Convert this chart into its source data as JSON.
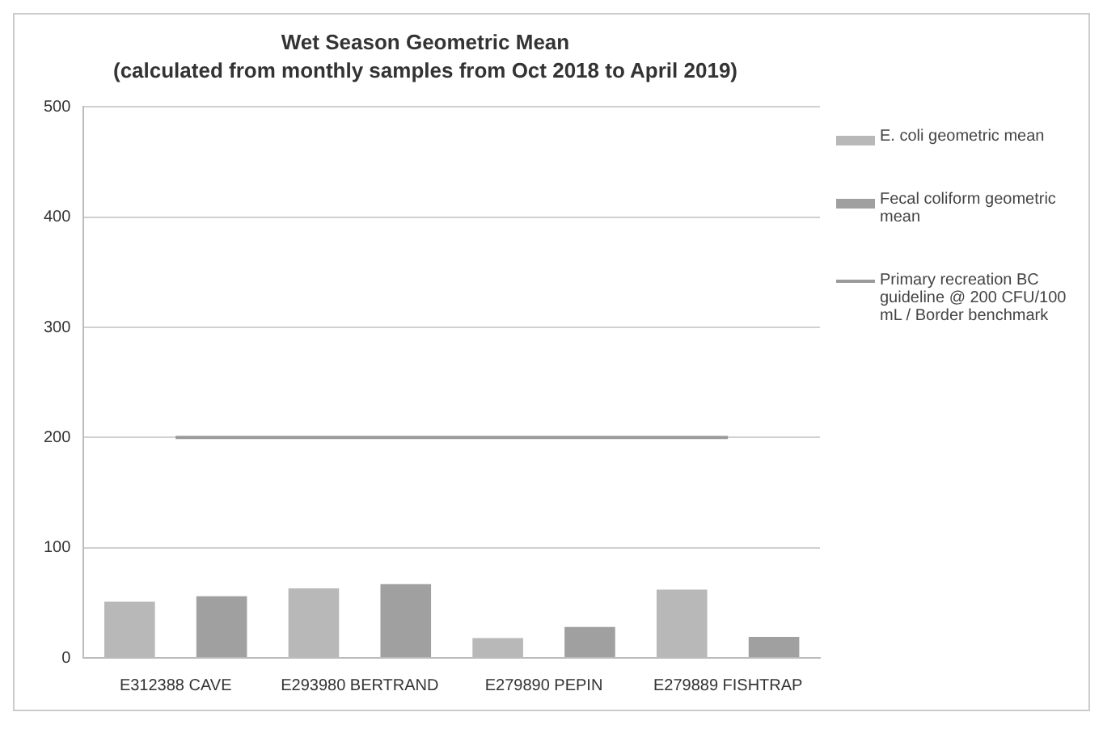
{
  "chart_data": {
    "type": "bar",
    "title": "Wet Season Geometric Mean",
    "subtitle": "(calculated from monthly samples from Oct 2018 to April 2019)",
    "categories": [
      "E312388 CAVE",
      "E293980 BERTRAND",
      "E279890 PEPIN",
      "E279889 FISHTRAP"
    ],
    "series": [
      {
        "name": "E. coli geometric mean",
        "color": "#b8b8b8",
        "values": [
          51,
          63,
          18,
          62
        ]
      },
      {
        "name": "Fecal coliform geometric mean",
        "color": "#a0a0a0",
        "values": [
          56,
          67,
          28,
          19
        ]
      },
      {
        "name": "Primary recreation BC guideline @ 200 CFU/100 mL / Border benchmark",
        "type": "line",
        "color": "#9a9a9a",
        "values": [
          200,
          200,
          200,
          200
        ]
      }
    ],
    "ylim": [
      0,
      500
    ],
    "yticks": [
      0,
      100,
      200,
      300,
      400,
      500
    ],
    "grid": "y",
    "legend": "right",
    "marker": "none"
  }
}
